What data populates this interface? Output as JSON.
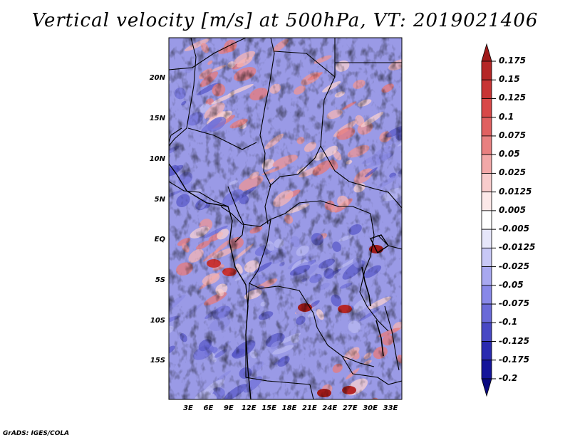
{
  "title": "Vertical velocity [m/s] at 500hPa, VT: 2019021406",
  "credit": "GrADS: IGES/COLA",
  "map": {
    "lat_labels": [
      "20N",
      "15N",
      "10N",
      "5N",
      "EQ",
      "5S",
      "10S",
      "15S"
    ],
    "lon_labels": [
      "3E",
      "6E",
      "9E",
      "12E",
      "15E",
      "18E",
      "21E",
      "24E",
      "27E",
      "30E",
      "33E"
    ],
    "lat_range": [
      -19.5,
      25
    ],
    "lon_range": [
      0,
      35
    ]
  },
  "colorbar": {
    "labels": [
      "0.175",
      "0.15",
      "0.125",
      "0.1",
      "0.075",
      "0.05",
      "0.025",
      "0.0125",
      "0.005",
      "-0.005",
      "-0.0125",
      "-0.025",
      "-0.05",
      "-0.075",
      "-0.1",
      "-0.125",
      "-0.175",
      "-0.2"
    ],
    "colors": [
      "#a01a1a",
      "#b52626",
      "#c83434",
      "#d84848",
      "#e06060",
      "#e88080",
      "#f2a8a8",
      "#f8cccc",
      "#fce8e8",
      "#ffffff",
      "#e6e6fa",
      "#c8c8f6",
      "#a8a8f0",
      "#8888e8",
      "#6a6ad8",
      "#4848c4",
      "#2a2ab0",
      "#14149a",
      "#0a0a80"
    ]
  },
  "chart_data": {
    "type": "heatmap",
    "title": "Vertical velocity [m/s] at 500hPa, VT: 2019021406",
    "variable": "Vertical velocity",
    "units": "m/s",
    "level": "500hPa",
    "valid_time": "2019021406",
    "x_ticks": [
      "3E",
      "6E",
      "9E",
      "12E",
      "15E",
      "18E",
      "21E",
      "24E",
      "27E",
      "30E",
      "33E"
    ],
    "y_ticks": [
      "20N",
      "15N",
      "10N",
      "5N",
      "EQ",
      "5S",
      "10S",
      "15S"
    ],
    "color_levels": [
      0.175,
      0.15,
      0.125,
      0.1,
      0.075,
      0.05,
      0.025,
      0.0125,
      0.005,
      -0.005,
      -0.0125,
      -0.025,
      -0.05,
      -0.075,
      -0.1,
      -0.125,
      -0.175,
      -0.2
    ]
  }
}
